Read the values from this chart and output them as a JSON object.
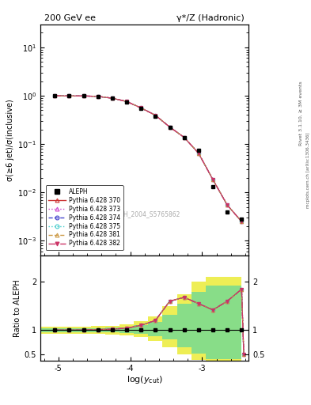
{
  "title_left": "200 GeV ee",
  "title_right": "γ*/Z (Hadronic)",
  "ylabel_main": "σ(≥6 jet)/σ(inclusive)",
  "ylabel_ratio": "Ratio to ALEPH",
  "xlabel": "log(y_{cut})",
  "right_label_top": "Rivet 3.1.10, ≥ 3M events",
  "right_label_bot": "mcplots.cern.ch [arXiv:1306.3436]",
  "watermark": "ALEPH_2004_S5765862",
  "aleph_x": [
    -5.05,
    -4.85,
    -4.65,
    -4.45,
    -4.25,
    -4.05,
    -3.85,
    -3.65,
    -3.45,
    -3.25,
    -3.05,
    -2.85,
    -2.65,
    -2.45
  ],
  "aleph_y": [
    1.0,
    0.99,
    0.99,
    0.96,
    0.88,
    0.75,
    0.55,
    0.38,
    0.22,
    0.135,
    0.075,
    0.013,
    0.004,
    0.0028
  ],
  "mc_x": [
    -5.05,
    -4.85,
    -4.65,
    -4.45,
    -4.25,
    -4.05,
    -3.85,
    -3.65,
    -3.45,
    -3.25,
    -3.05,
    -2.85,
    -2.65,
    -2.45
  ],
  "mc_y": [
    1.0,
    0.99,
    0.99,
    0.97,
    0.89,
    0.76,
    0.56,
    0.395,
    0.225,
    0.138,
    0.065,
    0.0185,
    0.0055,
    0.0025
  ],
  "ratio_x": [
    -5.05,
    -4.85,
    -4.65,
    -4.45,
    -4.25,
    -4.05,
    -3.85,
    -3.65,
    -3.45,
    -3.25,
    -3.05,
    -2.85,
    -2.65,
    -2.45,
    -2.42
  ],
  "ratio_y": [
    1.0,
    1.0,
    1.0,
    1.01,
    1.02,
    1.04,
    1.1,
    1.2,
    1.6,
    1.68,
    1.55,
    1.42,
    1.6,
    1.85,
    0.5
  ],
  "yellow_x_edges": [
    -5.25,
    -4.95,
    -4.75,
    -4.55,
    -4.35,
    -4.15,
    -3.95,
    -3.75,
    -3.55,
    -3.35,
    -3.15,
    -2.95,
    -2.45
  ],
  "yellow_lo": [
    0.93,
    0.93,
    0.93,
    0.92,
    0.91,
    0.89,
    0.85,
    0.78,
    0.65,
    0.5,
    0.38,
    0.28,
    0.28
  ],
  "yellow_hi": [
    1.07,
    1.07,
    1.07,
    1.08,
    1.09,
    1.12,
    1.18,
    1.28,
    1.5,
    1.75,
    2.0,
    2.1,
    2.1
  ],
  "green_x_edges": [
    -5.25,
    -4.95,
    -4.75,
    -4.55,
    -4.35,
    -4.15,
    -3.95,
    -3.75,
    -3.55,
    -3.35,
    -3.15,
    -2.95,
    -2.45
  ],
  "green_lo": [
    0.96,
    0.96,
    0.96,
    0.96,
    0.95,
    0.94,
    0.92,
    0.88,
    0.8,
    0.65,
    0.52,
    0.4,
    0.4
  ],
  "green_hi": [
    1.04,
    1.04,
    1.04,
    1.04,
    1.05,
    1.06,
    1.1,
    1.17,
    1.32,
    1.55,
    1.8,
    1.92,
    1.92
  ],
  "mc_color_370": "#cc3333",
  "mc_color_373": "#cc44cc",
  "mc_color_374": "#4444cc",
  "mc_color_375": "#44cccc",
  "mc_color_381": "#cc9944",
  "mc_color_382": "#cc3366",
  "green_color": "#88dd88",
  "yellow_color": "#eeee55",
  "xmin": -5.25,
  "xmax": -2.35
}
